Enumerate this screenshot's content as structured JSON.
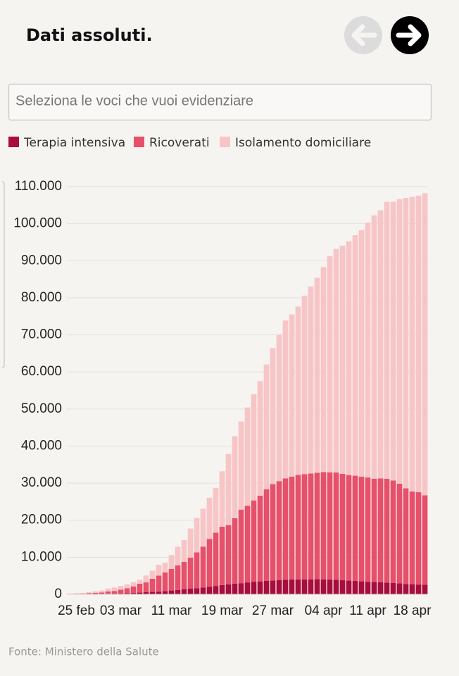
{
  "ui": {
    "search_placeholder": "Seleziona le voci che vuoi evidenziare"
  },
  "chart_data": {
    "type": "stacked-bar",
    "title": "Dati assoluti.",
    "source": "Fonte: Ministero della Salute",
    "categories": [
      null,
      "25 feb",
      null,
      null,
      null,
      null,
      null,
      null,
      "03 mar",
      null,
      null,
      null,
      null,
      null,
      null,
      null,
      "11 mar",
      null,
      null,
      null,
      null,
      null,
      null,
      null,
      "19 mar",
      null,
      null,
      null,
      null,
      null,
      null,
      null,
      "27 mar",
      null,
      null,
      null,
      null,
      null,
      null,
      null,
      "04 apr",
      null,
      null,
      null,
      null,
      null,
      null,
      "11 apr",
      null,
      null,
      null,
      null,
      null,
      null,
      "18 apr",
      null,
      null
    ],
    "series": [
      {
        "name": "Terapia intensiva",
        "color": "#a80d3d",
        "values": [
          26,
          35,
          36,
          56,
          64,
          105,
          140,
          166,
          229,
          295,
          351,
          462,
          567,
          650,
          733,
          877,
          1028,
          1153,
          1328,
          1518,
          1672,
          1851,
          2060,
          2257,
          2498,
          2655,
          2857,
          3009,
          3204,
          3396,
          3489,
          3612,
          3732,
          3856,
          3906,
          3981,
          4023,
          4035,
          4053,
          4068,
          3994,
          3977,
          3898,
          3792,
          3693,
          3605,
          3497,
          3381,
          3343,
          3260,
          3186,
          3079,
          2936,
          2812,
          2733,
          2635,
          2573
        ]
      },
      {
        "name": "Ricoverati",
        "color": "#e7506a",
        "values": [
          101,
          114,
          128,
          248,
          345,
          401,
          639,
          742,
          1034,
          1346,
          1790,
          2394,
          2651,
          3557,
          4316,
          5038,
          5838,
          6650,
          7426,
          8372,
          9663,
          11025,
          12894,
          14363,
          15757,
          16020,
          17708,
          19846,
          20692,
          21937,
          23112,
          24753,
          26029,
          26676,
          27386,
          27795,
          28192,
          28403,
          28540,
          28741,
          29010,
          28949,
          28976,
          28718,
          28485,
          28399,
          28242,
          28144,
          27847,
          28023,
          28011,
          27643,
          26893,
          25786,
          25007,
          24906,
          24134
        ]
      },
      {
        "name": "Isolamento domiciliare",
        "color": "#f8c5c7",
        "values": [
          94,
          162,
          221,
          284,
          412,
          543,
          798,
          927,
          1000,
          1065,
          1155,
          1060,
          1843,
          2180,
          2936,
          2599,
          3724,
          5036,
          5932,
          7860,
          9268,
          10197,
          11108,
          12090,
          14935,
          19185,
          22116,
          23783,
          26522,
          28697,
          30920,
          33648,
          36653,
          39533,
          42588,
          43752,
          45420,
          48134,
          50456,
          52579,
          55270,
          58320,
          60313,
          61557,
          63084,
          64873,
          66534,
          68744,
          71063,
          72333,
          74696,
          75185,
          76778,
          78364,
          79502,
          80031,
          81510
        ]
      }
    ],
    "ylim": [
      0,
      110000
    ],
    "yticks": [
      0,
      {
        "value": 10000,
        "label": "10.000"
      },
      {
        "value": 20000,
        "label": "20.000"
      },
      {
        "value": 30000,
        "label": "30.000"
      },
      {
        "value": 40000,
        "label": "40.000"
      },
      {
        "value": 50000,
        "label": "50.000"
      },
      {
        "value": 60000,
        "label": "60.000"
      },
      {
        "value": 70000,
        "label": "70.000"
      },
      {
        "value": 80000,
        "label": "80.000"
      },
      {
        "value": 90000,
        "label": "90.000"
      },
      {
        "value": 100000,
        "label": "100.000"
      },
      {
        "value": 110000,
        "label": "110.000"
      }
    ],
    "grid": true
  }
}
